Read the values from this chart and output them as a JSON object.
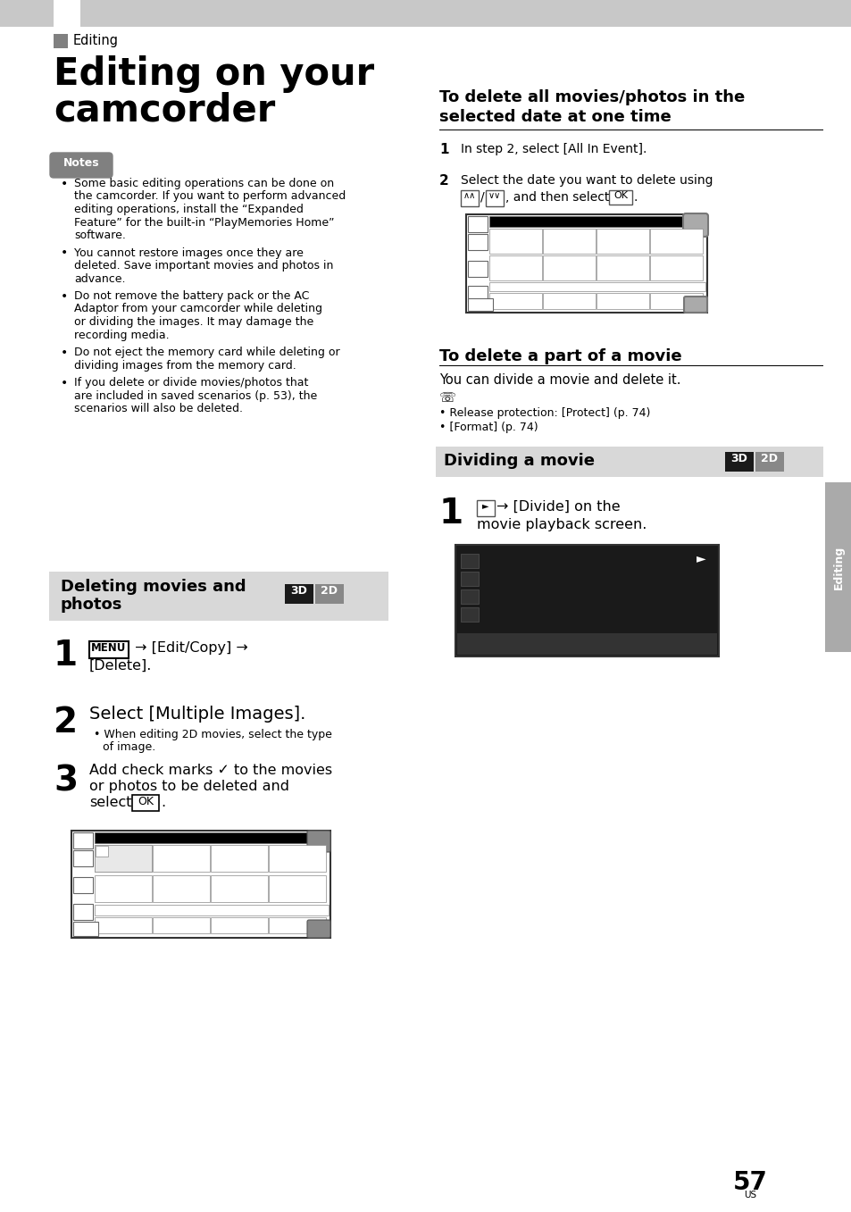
{
  "bg_color": "#ffffff",
  "top_band_color": "#c8c8c8",
  "white_sq_color": "#ffffff",
  "gray_sq_color": "#808080",
  "section_label": "Editing",
  "title_line1": "Editing on your",
  "title_line2": "camcorder",
  "notes_label": "Notes",
  "notes_bg": "#888888",
  "notes_bullets": [
    "Some basic editing operations can be done on\nthe camcorder. If you want to perform advanced\nediting operations, install the “Expanded\nFeature” for the built-in “PlayMemories Home”\nsoftware.",
    "You cannot restore images once they are\ndeleted. Save important movies and photos in\nadvance.",
    "Do not remove the battery pack or the AC\nAdaptor from your camcorder while deleting\nor dividing the images. It may damage the\nrecording media.",
    "Do not eject the memory card while deleting or\ndividing images from the memory card.",
    "If you delete or divide movies/photos that\nare included in saved scenarios (p. 53), the\nscenarios will also be deleted."
  ],
  "bar1_bg": "#d8d8d8",
  "bar1_text_line1": "Deleting movies and",
  "bar1_text_line2": "photos",
  "bar2_bg": "#d8d8d8",
  "bar2_text": "Dividing a movie",
  "badge_3d_bg": "#1a1a1a",
  "badge_3d_text": "3D",
  "badge_2d_bg": "#888888",
  "badge_2d_text": "2D",
  "right_title1_line1": "To delete all movies/photos in the",
  "right_title1_line2": "selected date at one time",
  "right_title2": "To delete a part of a movie",
  "right_body2": "You can divide a movie and delete it.",
  "right_bullets2": [
    "Release protection: [Protect] (p. 74)",
    "[Format] (p. 74)"
  ],
  "sidebar_bg": "#aaaaaa",
  "sidebar_text": "Editing",
  "page_num": "57",
  "page_label": "US"
}
